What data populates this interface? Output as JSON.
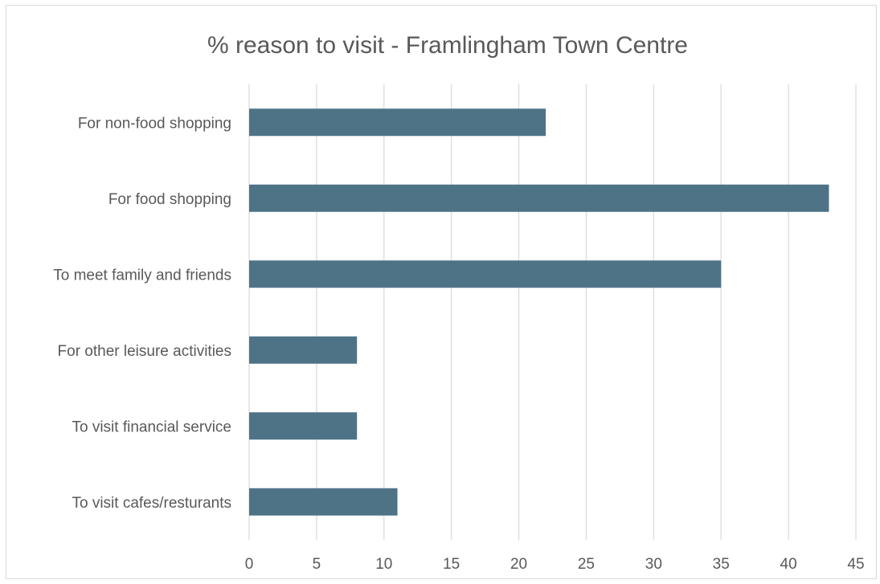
{
  "chart_data": {
    "type": "bar",
    "orientation": "horizontal",
    "title": "% reason to visit - Framlingham Town Centre",
    "xlabel": "",
    "ylabel": "",
    "categories": [
      "For non-food shopping",
      "For food shopping",
      "To meet family and friends",
      "For other leisure activities",
      "To visit financial service",
      "To visit cafes/resturants"
    ],
    "values": [
      22,
      43,
      35,
      8,
      8,
      11
    ],
    "xlim": [
      0,
      45
    ],
    "x_ticks": [
      "0",
      "5",
      "10",
      "15",
      "20",
      "25",
      "30",
      "35",
      "40",
      "45"
    ],
    "grid": "vertical",
    "legend": "none",
    "bar_color": "#4e7387"
  }
}
